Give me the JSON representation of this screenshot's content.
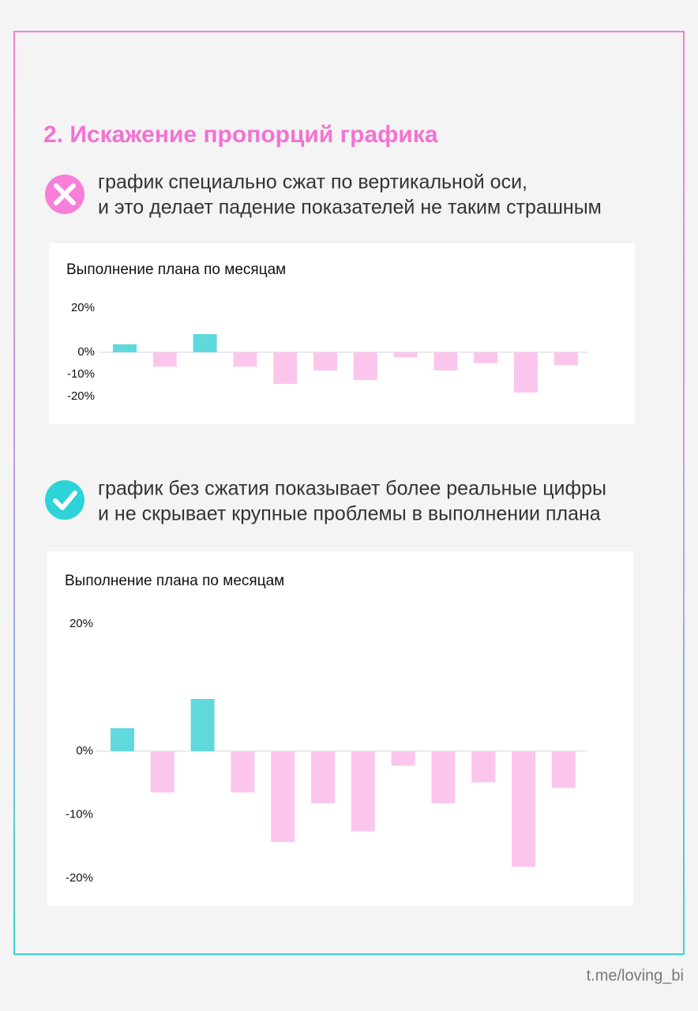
{
  "header": {
    "title": "2. Искажение пропорций графика"
  },
  "notes": [
    {
      "lines": [
        "график специально сжат по вертикальной оси,",
        "и это делает падение показателей не таким страшным"
      ]
    },
    {
      "lines": [
        "график без сжатия показывает более реальные цифры",
        "и не скрывает крупные проблемы в выполнении плана"
      ]
    }
  ],
  "chart_data": [
    {
      "type": "bar",
      "title": "Выполнение плана по месяцам",
      "values": [
        3.6,
        -6.5,
        8.2,
        -6.5,
        -14.3,
        -8.2,
        -12.6,
        -2.3,
        -8.2,
        -4.9,
        -18.2,
        -5.8
      ],
      "positive_color": "#5fd9de",
      "negative_color": "#fcc6ec",
      "ylim": [
        -20,
        20
      ],
      "yticks": [
        {
          "value": 20,
          "label": "20%"
        },
        {
          "value": 0,
          "label": "0%"
        },
        {
          "value": -10,
          "label": "-10%"
        },
        {
          "value": -20,
          "label": "-20%"
        }
      ]
    },
    {
      "type": "bar",
      "title": "Выполнение плана по месяцам",
      "values": [
        3.6,
        -6.5,
        8.2,
        -6.5,
        -14.3,
        -8.2,
        -12.6,
        -2.3,
        -8.2,
        -4.9,
        -18.2,
        -5.8
      ],
      "positive_color": "#5fd9de",
      "negative_color": "#fcc6ec",
      "ylim": [
        -20,
        20
      ],
      "yticks": [
        {
          "value": 20,
          "label": "20%"
        },
        {
          "value": 0,
          "label": "0%"
        },
        {
          "value": -10,
          "label": "-10%"
        },
        {
          "value": -20,
          "label": "-20%"
        }
      ]
    }
  ],
  "footer": "t.me/loving_bi"
}
